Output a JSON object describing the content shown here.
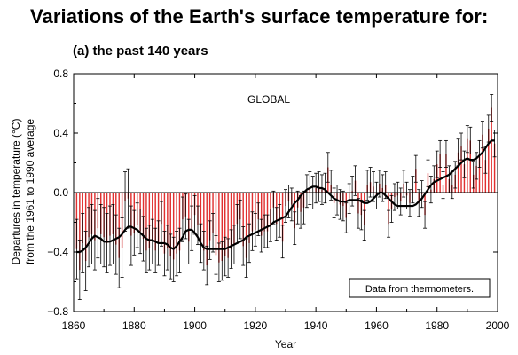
{
  "page": {
    "title": "Variations of the Earth's surface temperature for:",
    "subtitle": "(a) the past 140 years"
  },
  "colors": {
    "bars": "#e03030",
    "errorbars": "#000000",
    "smooth": "#000000",
    "frame": "#000000"
  },
  "chart_data": {
    "type": "bar",
    "annotation": "GLOBAL",
    "note": "Data from thermometers.",
    "xlabel": "Year",
    "ylabel_line1": "Departures in temperature (°C)",
    "ylabel_line2": "from the 1961 to 1990 average",
    "xlim": [
      1860,
      2000
    ],
    "ylim": [
      -0.8,
      0.8
    ],
    "xticks": [
      1860,
      1880,
      1900,
      1920,
      1940,
      1960,
      1980,
      2000
    ],
    "xtick_labels": [
      "1860",
      "1880",
      "1900",
      "1920",
      "1940",
      "1960",
      "1980",
      "2000"
    ],
    "yticks": [
      -0.8,
      -0.4,
      0.0,
      0.4,
      0.8
    ],
    "ytick_labels": [
      "−0.8",
      "−0.4",
      "0.0",
      "0.4",
      "0.8"
    ],
    "grid": false,
    "baseline": 0.0,
    "years": [
      1861,
      1862,
      1863,
      1864,
      1865,
      1866,
      1867,
      1868,
      1869,
      1870,
      1871,
      1872,
      1873,
      1874,
      1875,
      1876,
      1877,
      1878,
      1879,
      1880,
      1881,
      1882,
      1883,
      1884,
      1885,
      1886,
      1887,
      1888,
      1889,
      1890,
      1891,
      1892,
      1893,
      1894,
      1895,
      1896,
      1897,
      1898,
      1899,
      1900,
      1901,
      1902,
      1903,
      1904,
      1905,
      1906,
      1907,
      1908,
      1909,
      1910,
      1911,
      1912,
      1913,
      1914,
      1915,
      1916,
      1917,
      1918,
      1919,
      1920,
      1921,
      1922,
      1923,
      1924,
      1925,
      1926,
      1927,
      1928,
      1929,
      1930,
      1931,
      1932,
      1933,
      1934,
      1935,
      1936,
      1937,
      1938,
      1939,
      1940,
      1941,
      1942,
      1943,
      1944,
      1945,
      1946,
      1947,
      1948,
      1949,
      1950,
      1951,
      1952,
      1953,
      1954,
      1955,
      1956,
      1957,
      1958,
      1959,
      1960,
      1961,
      1962,
      1963,
      1964,
      1965,
      1966,
      1967,
      1968,
      1969,
      1970,
      1971,
      1972,
      1973,
      1974,
      1975,
      1976,
      1977,
      1978,
      1979,
      1980,
      1981,
      1982,
      1983,
      1984,
      1985,
      1986,
      1987,
      1988,
      1989,
      1990,
      1991,
      1992,
      1993,
      1994,
      1995,
      1996,
      1997,
      1998,
      1999
    ],
    "anomaly": [
      -0.38,
      -0.52,
      -0.34,
      -0.46,
      -0.3,
      -0.28,
      -0.32,
      -0.24,
      -0.28,
      -0.3,
      -0.34,
      -0.29,
      -0.28,
      -0.35,
      -0.44,
      -0.37,
      -0.06,
      -0.04,
      -0.29,
      -0.27,
      -0.22,
      -0.26,
      -0.31,
      -0.39,
      -0.37,
      -0.33,
      -0.39,
      -0.34,
      -0.21,
      -0.41,
      -0.37,
      -0.43,
      -0.45,
      -0.41,
      -0.39,
      -0.18,
      -0.16,
      -0.33,
      -0.24,
      -0.15,
      -0.22,
      -0.34,
      -0.39,
      -0.49,
      -0.32,
      -0.27,
      -0.42,
      -0.47,
      -0.46,
      -0.43,
      -0.44,
      -0.38,
      -0.35,
      -0.21,
      -0.18,
      -0.36,
      -0.44,
      -0.34,
      -0.26,
      -0.25,
      -0.18,
      -0.29,
      -0.26,
      -0.26,
      -0.22,
      -0.1,
      -0.21,
      -0.19,
      -0.33,
      -0.09,
      -0.06,
      -0.08,
      -0.24,
      -0.1,
      -0.13,
      -0.1,
      0.01,
      0.03,
      0.0,
      0.03,
      0.04,
      0.02,
      0.03,
      0.17,
      0.05,
      -0.07,
      -0.05,
      -0.08,
      -0.09,
      -0.17,
      -0.04,
      0.01,
      0.08,
      -0.14,
      -0.15,
      -0.22,
      0.05,
      0.07,
      0.04,
      -0.02,
      0.06,
      0.03,
      0.05,
      -0.21,
      -0.11,
      -0.03,
      -0.02,
      -0.06,
      0.06,
      -0.02,
      -0.07,
      0.02,
      0.16,
      -0.07,
      -0.01,
      -0.15,
      0.13,
      0.02,
      0.09,
      0.19,
      0.26,
      0.05,
      0.26,
      0.09,
      0.05,
      0.12,
      0.27,
      0.31,
      0.19,
      0.36,
      0.35,
      0.12,
      0.18,
      0.26,
      0.39,
      0.22,
      0.43,
      0.57,
      0.33
    ],
    "smooth": [
      -0.4,
      -0.4,
      -0.39,
      -0.37,
      -0.34,
      -0.31,
      -0.29,
      -0.3,
      -0.31,
      -0.33,
      -0.33,
      -0.33,
      -0.32,
      -0.31,
      -0.3,
      -0.28,
      -0.25,
      -0.23,
      -0.23,
      -0.24,
      -0.25,
      -0.27,
      -0.29,
      -0.31,
      -0.32,
      -0.32,
      -0.33,
      -0.34,
      -0.34,
      -0.34,
      -0.35,
      -0.37,
      -0.38,
      -0.36,
      -0.33,
      -0.3,
      -0.26,
      -0.25,
      -0.25,
      -0.27,
      -0.3,
      -0.34,
      -0.37,
      -0.38,
      -0.38,
      -0.38,
      -0.38,
      -0.38,
      -0.38,
      -0.38,
      -0.37,
      -0.36,
      -0.35,
      -0.34,
      -0.33,
      -0.32,
      -0.3,
      -0.29,
      -0.28,
      -0.27,
      -0.26,
      -0.25,
      -0.24,
      -0.23,
      -0.22,
      -0.2,
      -0.19,
      -0.18,
      -0.17,
      -0.16,
      -0.13,
      -0.1,
      -0.07,
      -0.05,
      -0.02,
      0.0,
      0.02,
      0.03,
      0.04,
      0.04,
      0.03,
      0.03,
      0.02,
      0.0,
      -0.02,
      -0.04,
      -0.05,
      -0.06,
      -0.06,
      -0.06,
      -0.05,
      -0.05,
      -0.05,
      -0.05,
      -0.06,
      -0.07,
      -0.07,
      -0.06,
      -0.04,
      -0.02,
      0.0,
      0.0,
      -0.02,
      -0.04,
      -0.06,
      -0.08,
      -0.09,
      -0.09,
      -0.09,
      -0.09,
      -0.09,
      -0.09,
      -0.08,
      -0.06,
      -0.04,
      -0.01,
      0.02,
      0.05,
      0.07,
      0.08,
      0.09,
      0.1,
      0.11,
      0.12,
      0.14,
      0.16,
      0.18,
      0.2,
      0.22,
      0.23,
      0.22,
      0.22,
      0.23,
      0.25,
      0.27,
      0.3,
      0.33,
      0.35,
      0.35
    ],
    "err_half": [
      0.2,
      0.15,
      0.13,
      0.11,
      0.1,
      0.09,
      0.09
    ]
  }
}
